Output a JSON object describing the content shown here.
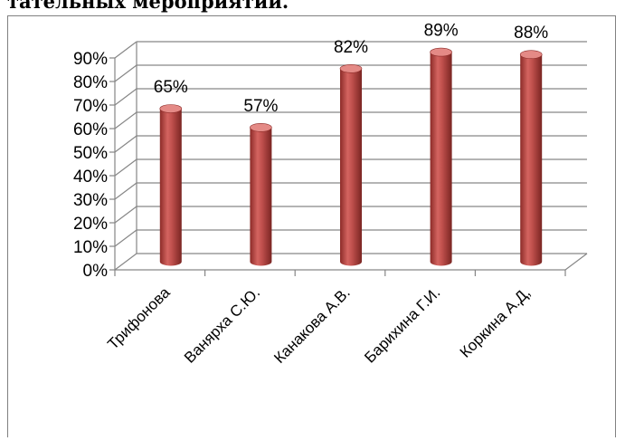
{
  "caption": "тательных мероприятий.",
  "chart_data": {
    "type": "bar",
    "title": "",
    "xlabel": "",
    "ylabel": "",
    "categories": [
      "Трифонова",
      "Ванярха С.Ю.",
      "Канакова А.В.",
      "Барихина Г.И.",
      "Коркина А.Д,"
    ],
    "values": [
      65,
      57,
      82,
      89,
      88
    ],
    "data_labels": [
      "65%",
      "57%",
      "82%",
      "89%",
      "88%"
    ],
    "y_ticks": [
      "0%",
      "10%",
      "20%",
      "30%",
      "40%",
      "50%",
      "60%",
      "70%",
      "80%",
      "90%"
    ],
    "ylim": [
      0,
      90
    ],
    "grid": true,
    "legend": "none",
    "style": "3d-cylinder",
    "bar_color": "#c0504d",
    "bar_dark": "#8c2b28",
    "bar_light": "#e48a86",
    "grid_color": "#868686"
  }
}
